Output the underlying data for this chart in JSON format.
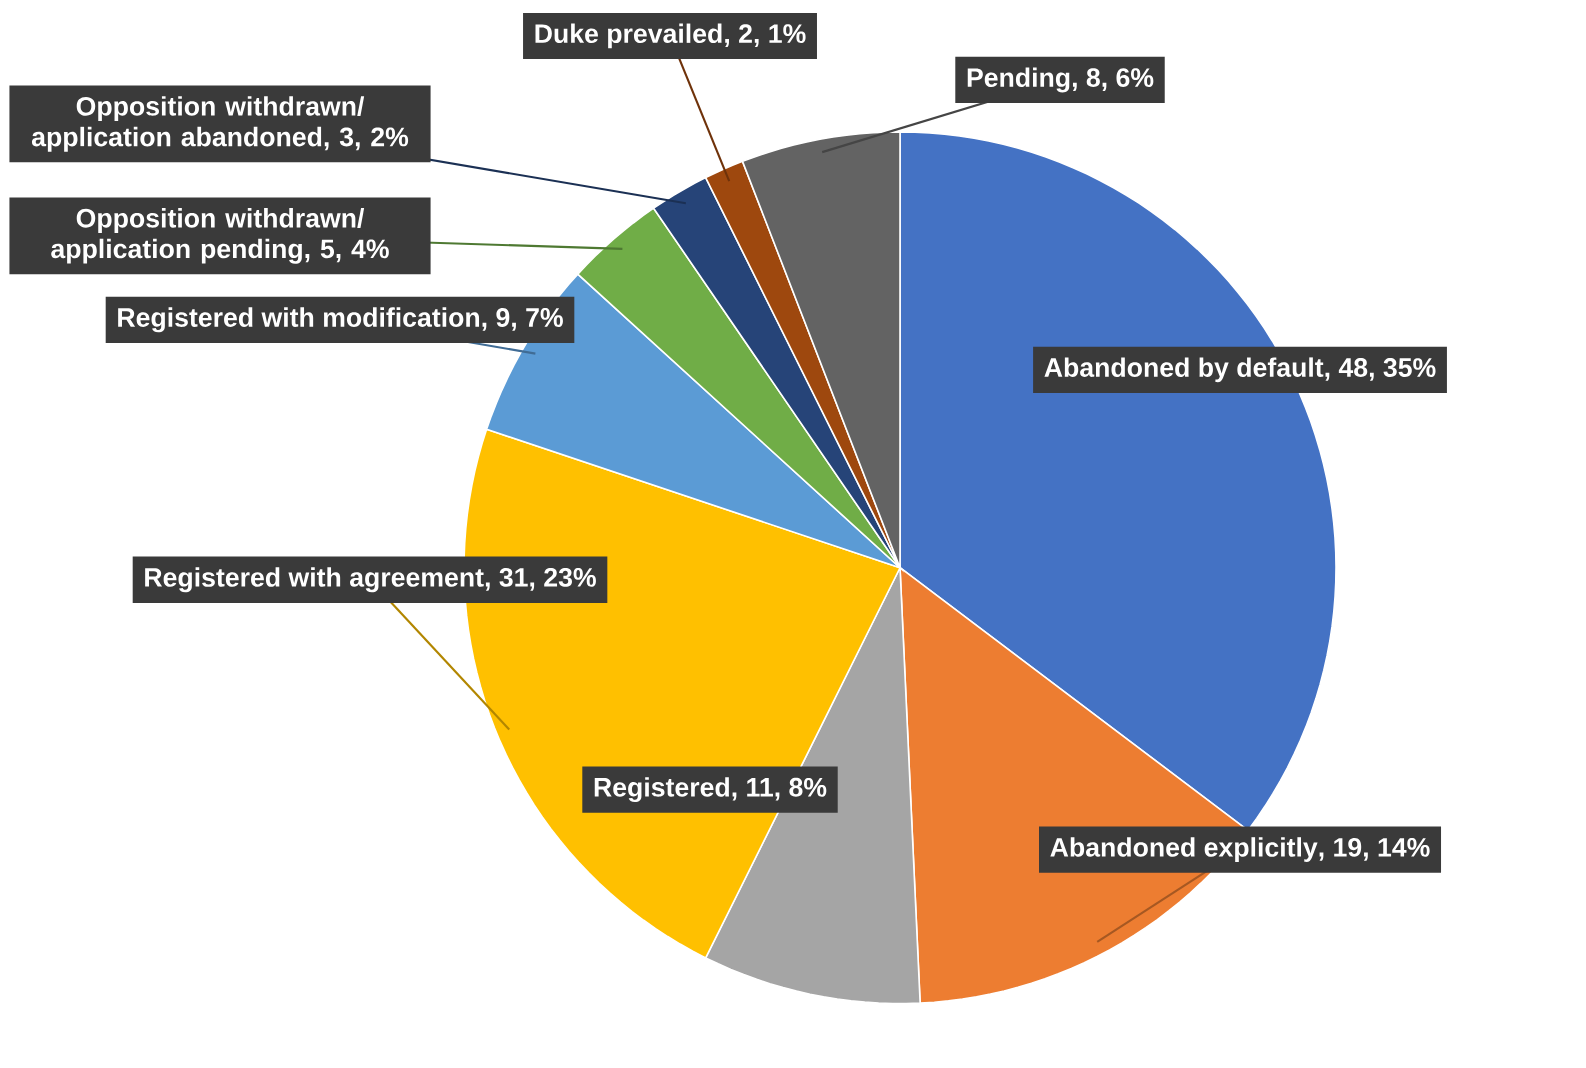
{
  "chart_data": {
    "type": "pie",
    "categories": [
      "Abandoned by default",
      "Abandoned explicitly",
      "Registered",
      "Registered with agreement",
      "Registered with modification",
      "Opposition withdrawn/ application pending",
      "Opposition withdrawn/ application abandoned",
      "Duke prevailed",
      "Pending"
    ],
    "values": [
      48,
      19,
      11,
      31,
      9,
      5,
      3,
      2,
      8
    ],
    "value_labels": [
      ", 48, 35%",
      ", 19, 14%",
      ", 11, 8%",
      ", 31, 23%",
      ", 9, 7%",
      ", 5, 4%",
      ", 3, 2%",
      ", 2, 1%",
      ", 8, 6%"
    ],
    "colors": [
      "#4472c4",
      "#ed7d31",
      "#a5a5a5",
      "#ffc000",
      "#5b9bd5",
      "#70ad47",
      "#264478",
      "#9e480e",
      "#636363"
    ]
  }
}
